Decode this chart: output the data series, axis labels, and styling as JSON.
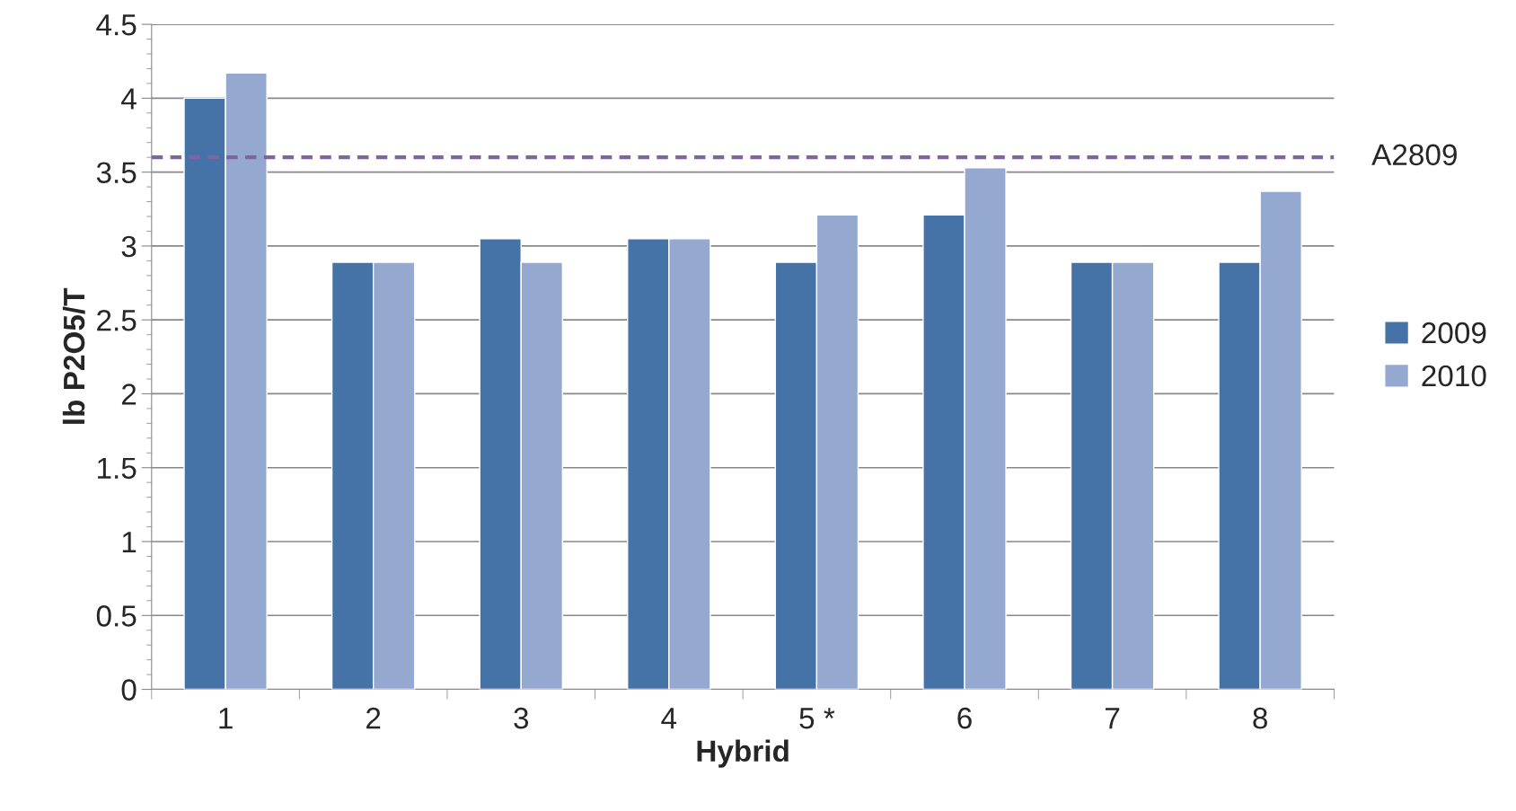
{
  "chart_data": {
    "type": "bar",
    "xlabel": "Hybrid",
    "ylabel": "lb P2O5/T",
    "categories": [
      "1",
      "2",
      "3",
      "4",
      "5 *",
      "6",
      "7",
      "8"
    ],
    "series": [
      {
        "name": "2009",
        "color": "#4572a7",
        "values": [
          4.0,
          2.89,
          3.05,
          3.05,
          2.89,
          3.21,
          2.89,
          2.89
        ]
      },
      {
        "name": "2010",
        "color": "#95a9d0",
        "values": [
          4.17,
          2.89,
          2.89,
          3.05,
          3.21,
          3.53,
          2.89,
          3.37
        ]
      }
    ],
    "ylim": [
      0,
      4.5
    ],
    "yticks": [
      0,
      0.5,
      1,
      1.5,
      2,
      2.5,
      3,
      3.5,
      4,
      4.5
    ],
    "ref_lines": [
      {
        "axis": "y",
        "value": 3.6,
        "label": "A2809",
        "color": "#8064a2",
        "line_style": "dashed"
      }
    ],
    "grid": "y",
    "legend": "right"
  }
}
